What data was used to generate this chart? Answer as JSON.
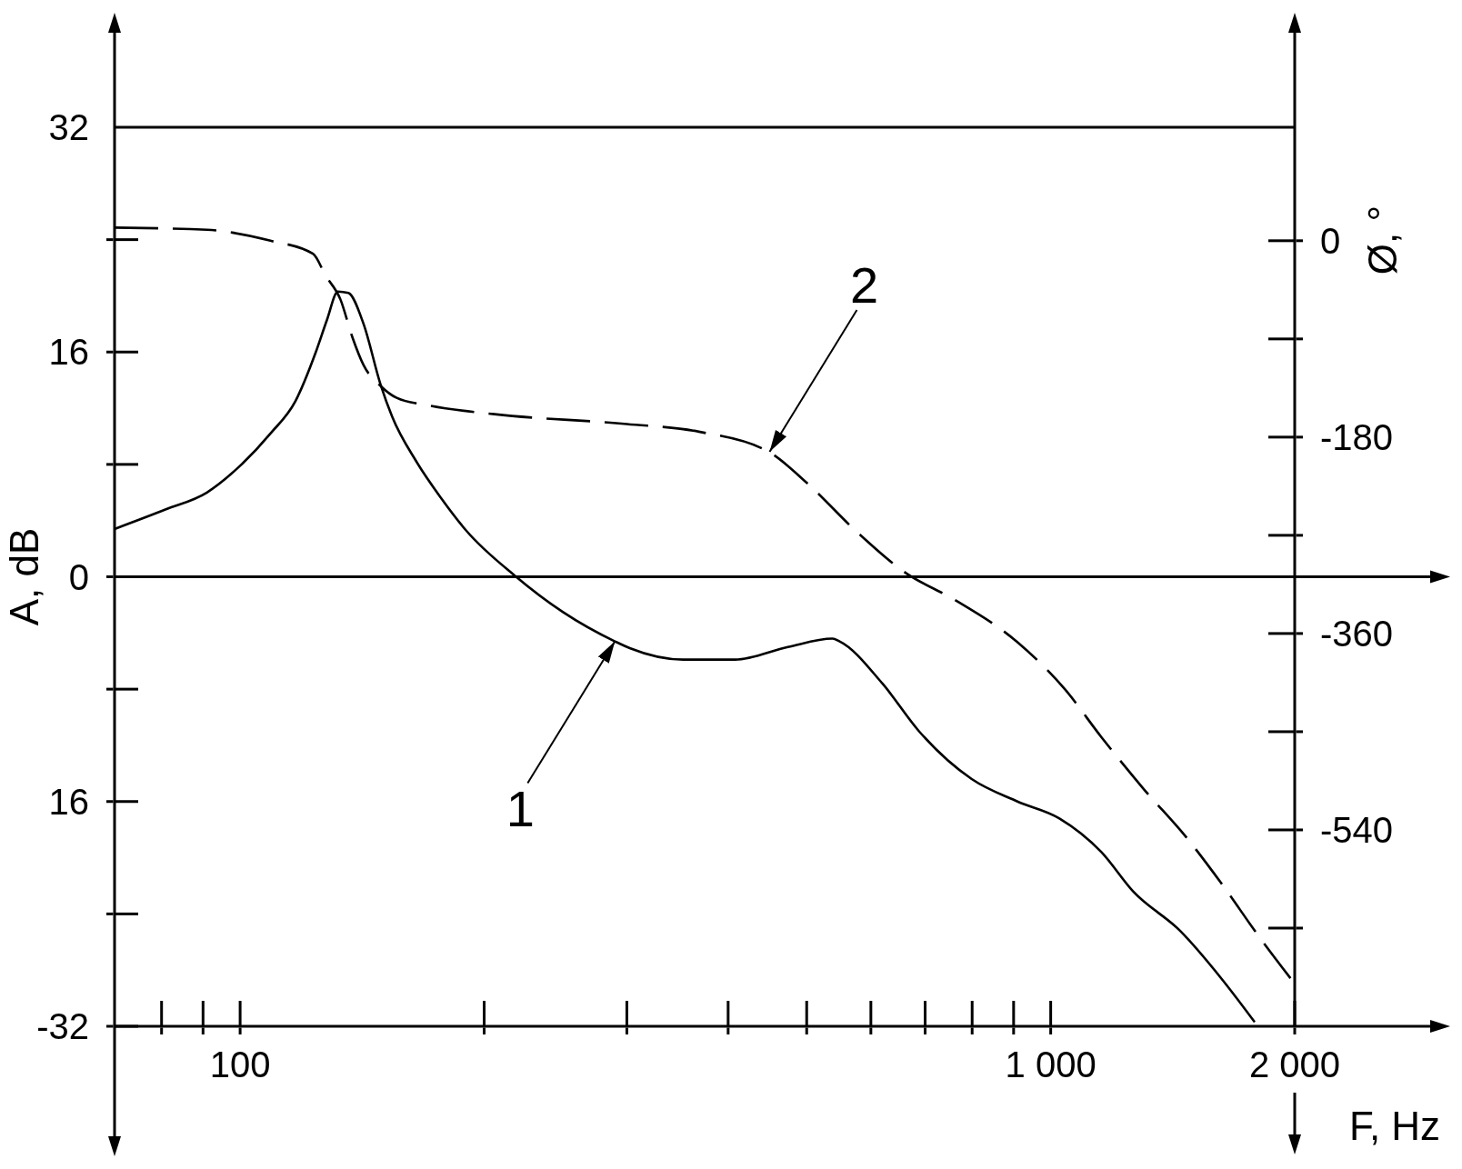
{
  "chart_data": {
    "type": "line",
    "xlabel": "F, Hz",
    "ylabel": "A, dB",
    "y2label": "Ø, °",
    "log": "x",
    "xlim": [
      70,
      2000
    ],
    "xticks": [
      {
        "value": 80,
        "label": null
      },
      {
        "value": 90,
        "label": null
      },
      100,
      {
        "value": 200,
        "label": null
      },
      {
        "value": 300,
        "label": null
      },
      {
        "value": 400,
        "label": null
      },
      {
        "value": 500,
        "label": null
      },
      {
        "value": 600,
        "label": null
      },
      {
        "value": 700,
        "label": null
      },
      {
        "value": 800,
        "label": null
      },
      {
        "value": 900,
        "label": null
      },
      {
        "value": 1000,
        "label": "1 000"
      },
      {
        "value": 2000,
        "label": "2 000"
      }
    ],
    "ylim": [
      -32,
      32
    ],
    "yticks": [
      32,
      {
        "value": 24,
        "label": null
      },
      16,
      {
        "value": 8,
        "label": null
      },
      0,
      {
        "value": -8,
        "label": null
      },
      {
        "value": -16,
        "label": "16"
      },
      {
        "value": -24,
        "label": null
      },
      -32
    ],
    "y2lim": [
      -720,
      104
    ],
    "y2ticks": [
      0,
      {
        "value": -90,
        "label": null
      },
      -180,
      {
        "value": -270,
        "label": null
      },
      -360,
      {
        "value": -450,
        "label": null
      },
      -540,
      {
        "value": -630,
        "label": null
      }
    ],
    "ref_lines": [
      {
        "axis": "y",
        "value": 0
      }
    ],
    "series": [
      {
        "color": "#000000",
        "line_style": "solid",
        "x": [
          70,
          81,
          91,
          100,
          109,
          117,
          124,
          128,
          132,
          136,
          142,
          149,
          154,
          165,
          177,
          190,
          218,
          250,
          290,
          303,
          352,
          408,
          474,
          538,
          549,
          620,
          688,
          799,
          910,
          1025,
          1155,
          1264,
          1444,
          1624,
          1785
        ],
        "values": [
          3.4,
          4.8,
          6.0,
          7.9,
          10.2,
          12.5,
          16.0,
          18.3,
          20.3,
          20.2,
          18.0,
          13.7,
          11.4,
          8.2,
          5.6,
          3.3,
          0.1,
          -2.5,
          -4.6,
          -5.1,
          -5.9,
          -5.9,
          -5.0,
          -4.4,
          -4.6,
          -7.6,
          -11.0,
          -14.4,
          -16.0,
          -17.2,
          -19.6,
          -22.4,
          -25.2,
          -28.6,
          -31.7
        ]
      },
      {
        "color": "#000000",
        "line_style": "dashed",
        "axis": "y2",
        "x": [
          70,
          91,
          109,
          123,
          127.5,
          133,
          137.5,
          142,
          149,
          156,
          171,
          206,
          300,
          368,
          450,
          502,
          575,
          664,
          761,
          910,
          1041,
          1155,
          1304,
          1467,
          1624,
          1808,
          2000
        ],
        "values": [
          12,
          10,
          0,
          -12,
          -32,
          -54,
          -88,
          -114,
          -133,
          -144,
          -151,
          -159,
          -168,
          -175,
          -194,
          -223,
          -266,
          -305,
          -329,
          -368,
          -411,
          -455,
          -503,
          -546,
          -589,
          -638,
          -681
        ]
      }
    ],
    "annotations": [
      {
        "text": "1",
        "x": 290,
        "y": -4.6
      },
      {
        "text": "2",
        "x": 450,
        "y": 8.9
      }
    ]
  }
}
